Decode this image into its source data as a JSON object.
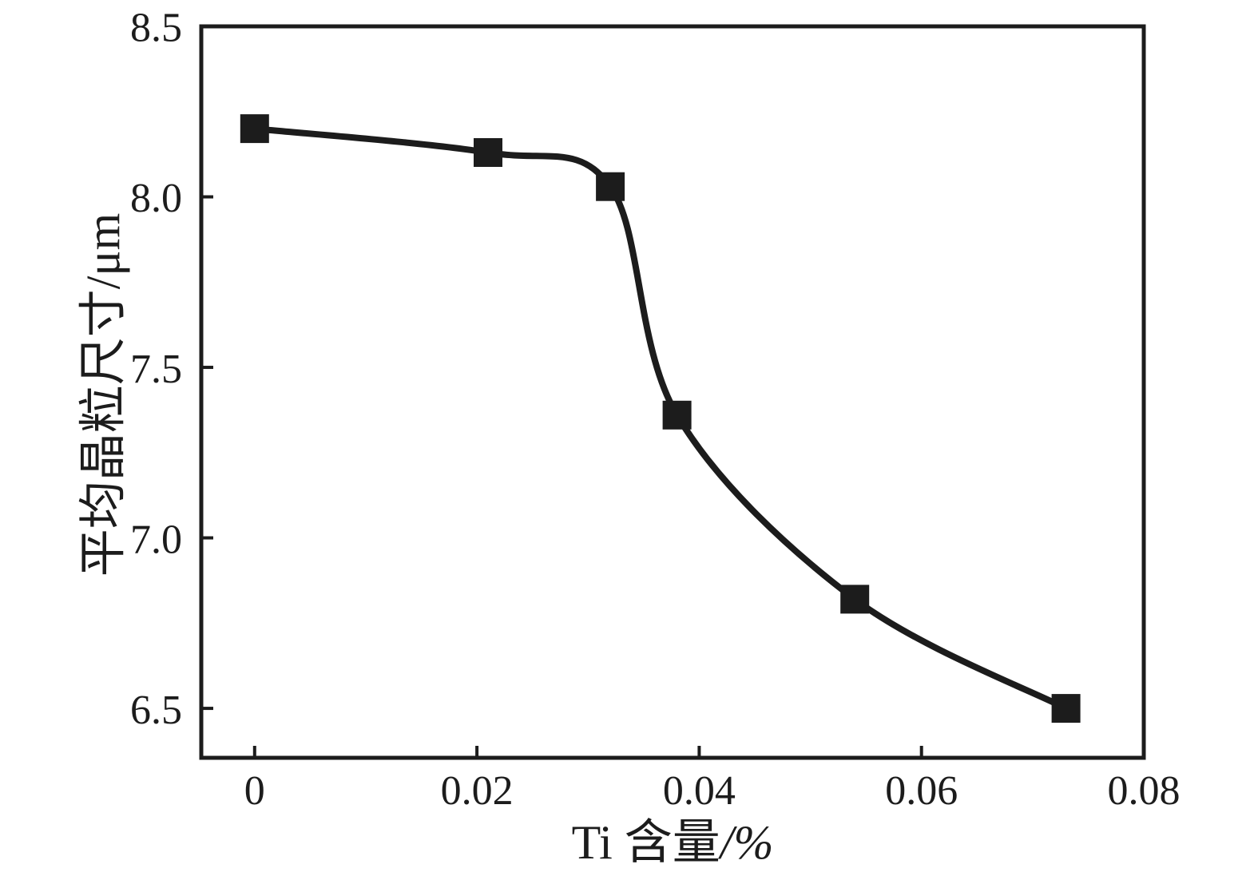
{
  "figure": {
    "background": "#ffffff",
    "ink_color": "#1c1c1c"
  },
  "chart_data": {
    "type": "line",
    "title": "",
    "xlabel": "Ti 含量/%",
    "xlabel_main": "Ti 含量",
    "xlabel_unit": "/%",
    "ylabel": "平均晶粒尺寸/μm",
    "ylabel_main": "平均晶粒尺寸",
    "ylabel_unit": "/μm",
    "curve_style": "smooth-spline",
    "grid": false,
    "legend": "none",
    "axis_color": "#1c1c1c",
    "series": [
      {
        "marker": "filled-square",
        "color": "#1c1c1c",
        "points": [
          {
            "x": 0,
            "y": 8.2
          },
          {
            "x": 0.021,
            "y": 8.13
          },
          {
            "x": 0.032,
            "y": 8.03
          },
          {
            "x": 0.038,
            "y": 7.36
          },
          {
            "x": 0.054,
            "y": 6.82
          },
          {
            "x": 0.073,
            "y": 6.5
          }
        ]
      }
    ],
    "x_ticks": [
      {
        "value": 0,
        "label": "0"
      },
      {
        "value": 0.02,
        "label": "0.02"
      },
      {
        "value": 0.04,
        "label": "0.04"
      },
      {
        "value": 0.06,
        "label": "0.06"
      },
      {
        "value": 0.08,
        "label": "0.08"
      }
    ],
    "y_ticks": [
      {
        "value": 6.5,
        "label": "6.5"
      },
      {
        "value": 7.0,
        "label": "7.0"
      },
      {
        "value": 7.5,
        "label": "7.5"
      },
      {
        "value": 8.0,
        "label": "8.0"
      },
      {
        "value": 8.5,
        "label": "8.5"
      }
    ],
    "xlim": [
      -0.0048,
      0.08
    ],
    "ylim": [
      6.355,
      8.5
    ]
  }
}
